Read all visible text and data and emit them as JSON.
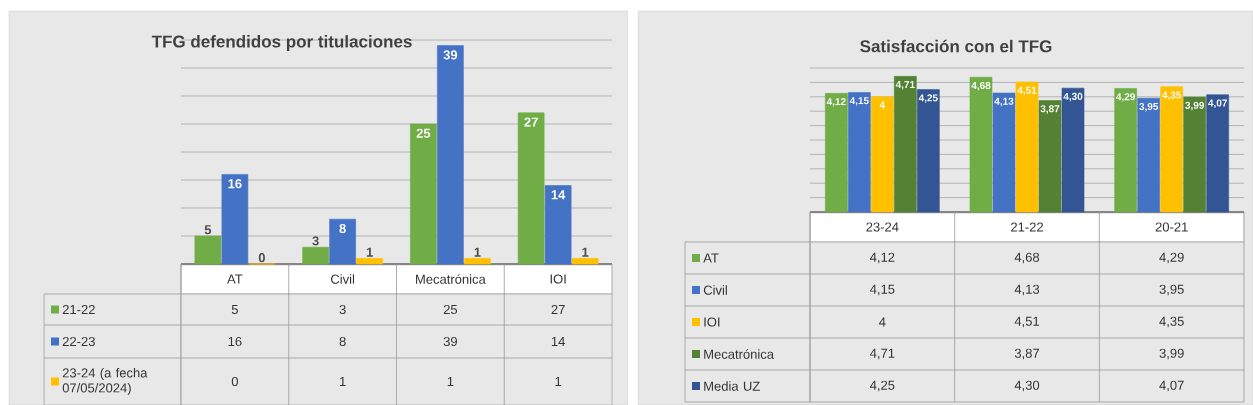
{
  "chart_data": [
    {
      "type": "bar",
      "title": "TFG defendidos por titulaciones",
      "categories": [
        "AT",
        "Civil",
        "Mecatrónica",
        "IOI"
      ],
      "series": [
        {
          "name": "21-22",
          "color": "#70ad47",
          "values": [
            5,
            3,
            25,
            27
          ],
          "value_labels": [
            "5",
            "3",
            "25",
            "27"
          ]
        },
        {
          "name": "22-23",
          "color": "#4472c4",
          "values": [
            16,
            8,
            39,
            14
          ],
          "value_labels": [
            "16",
            "8",
            "39",
            "14"
          ]
        },
        {
          "name": "23-24 (a fecha 07/05/2024)",
          "color": "#ffc000",
          "values": [
            0,
            1,
            1,
            1
          ],
          "value_labels": [
            "0",
            "1",
            "1",
            "1"
          ]
        }
      ],
      "ylim": [
        0,
        40
      ],
      "yticks": [
        {
          "value": 5,
          "label": null
        },
        {
          "value": 10,
          "label": null
        },
        {
          "value": 15,
          "label": null
        },
        {
          "value": 20,
          "label": null
        },
        {
          "value": 25,
          "label": null
        },
        {
          "value": 30,
          "label": null
        },
        {
          "value": 35,
          "label": null
        },
        {
          "value": 40,
          "label": null
        }
      ],
      "grid": "y",
      "legend": "bottom",
      "tick_labels": "x"
    },
    {
      "type": "bar",
      "title": "Satisfacción con el TFG",
      "categories": [
        "23-24",
        "21-22",
        "20-21"
      ],
      "series": [
        {
          "name": "AT",
          "color": "#70ad47",
          "values": [
            4.12,
            4.68,
            4.29
          ],
          "value_labels": [
            "4,12",
            "4,68",
            "4,29"
          ]
        },
        {
          "name": "Civil",
          "color": "#4472c4",
          "values": [
            4.15,
            4.13,
            3.95
          ],
          "value_labels": [
            "4,15",
            "4,13",
            "3,95"
          ]
        },
        {
          "name": "IOI",
          "color": "#ffc000",
          "values": [
            4,
            4.51,
            4.35
          ],
          "value_labels": [
            "4",
            "4,51",
            "4,35"
          ]
        },
        {
          "name": "Mecatrónica",
          "color": "#548235",
          "values": [
            4.71,
            3.87,
            3.99
          ],
          "value_labels": [
            "4,71",
            "3,87",
            "3,99"
          ]
        },
        {
          "name": "Media UZ",
          "color": "#335593",
          "values": [
            4.25,
            4.3,
            4.07
          ],
          "value_labels": [
            "4,25",
            "4,30",
            "4,07"
          ]
        }
      ],
      "ylim": [
        0,
        5
      ],
      "yticks": [
        {
          "value": 0.5,
          "label": null
        },
        {
          "value": 1,
          "label": null
        },
        {
          "value": 1.5,
          "label": null
        },
        {
          "value": 2,
          "label": null
        },
        {
          "value": 2.5,
          "label": null
        },
        {
          "value": 3,
          "label": null
        },
        {
          "value": 3.5,
          "label": null
        },
        {
          "value": 4,
          "label": null
        },
        {
          "value": 4.5,
          "label": null
        },
        {
          "value": 5,
          "label": null
        }
      ],
      "grid": "y",
      "legend": "bottom",
      "tick_labels": "x"
    }
  ]
}
